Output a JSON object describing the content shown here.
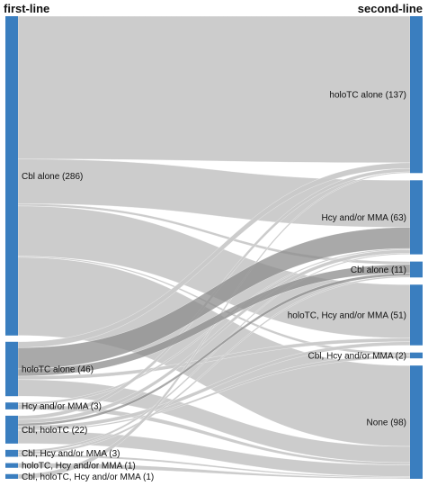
{
  "header": {
    "left_title": "first-line",
    "right_title": "second-line"
  },
  "colors": {
    "node": "#3a7ebf",
    "flow": "#c9c9c9",
    "flow_dark": "#8c8c8c",
    "background": "#ffffff"
  },
  "chart_data": {
    "type": "sankey",
    "sources": [
      {
        "id": "s_cbl",
        "label": "Cbl alone (286)",
        "value": 286
      },
      {
        "id": "s_holo",
        "label": "holoTC alone (46)",
        "value": 46
      },
      {
        "id": "s_hcy",
        "label": "Hcy and/or MMA (3)",
        "value": 3
      },
      {
        "id": "s_cblholo",
        "label": "Cbl, holoTC (22)",
        "value": 22
      },
      {
        "id": "s_cblhcy",
        "label": "Cbl, Hcy and/or MMA (3)",
        "value": 3
      },
      {
        "id": "s_holohcy",
        "label": "holoTC, Hcy and/or MMA (1)",
        "value": 1
      },
      {
        "id": "s_all",
        "label": "Cbl, holoTC, Hcy and/or MMA (1)",
        "value": 1
      }
    ],
    "targets": [
      {
        "id": "t_holo",
        "label": "holoTC alone (137)",
        "value": 137
      },
      {
        "id": "t_hcy",
        "label": "Hcy and/or MMA (63)",
        "value": 63
      },
      {
        "id": "t_cbl",
        "label": "Cbl alone (11)",
        "value": 11
      },
      {
        "id": "t_holohcy",
        "label": "holoTC, Hcy and/or MMA (51)",
        "value": 51
      },
      {
        "id": "t_cblhcy",
        "label": "Cbl, Hcy and/or MMA (2)",
        "value": 2
      },
      {
        "id": "t_none",
        "label": "None (98)",
        "value": 98
      }
    ],
    "links": [
      {
        "source": "s_cbl",
        "target": "t_holo",
        "value": 128
      },
      {
        "source": "s_cbl",
        "target": "t_hcy",
        "value": 40
      },
      {
        "source": "s_cbl",
        "target": "t_cbl",
        "value": 2
      },
      {
        "source": "s_cbl",
        "target": "t_holohcy",
        "value": 45
      },
      {
        "source": "s_cbl",
        "target": "t_cblhcy",
        "value": 1
      },
      {
        "source": "s_cbl",
        "target": "t_none",
        "value": 70
      },
      {
        "source": "s_holo",
        "target": "t_holo",
        "value": 5
      },
      {
        "source": "s_holo",
        "target": "t_hcy",
        "value": 18
      },
      {
        "source": "s_holo",
        "target": "t_cbl",
        "value": 6
      },
      {
        "source": "s_holo",
        "target": "t_holohcy",
        "value": 3
      },
      {
        "source": "s_holo",
        "target": "t_none",
        "value": 14
      },
      {
        "source": "s_hcy",
        "target": "t_hcy",
        "value": 1
      },
      {
        "source": "s_hcy",
        "target": "t_none",
        "value": 2
      },
      {
        "source": "s_cblholo",
        "target": "t_holo",
        "value": 3
      },
      {
        "source": "s_cblholo",
        "target": "t_hcy",
        "value": 3
      },
      {
        "source": "s_cblholo",
        "target": "t_cbl",
        "value": 2
      },
      {
        "source": "s_cblholo",
        "target": "t_holohcy",
        "value": 3
      },
      {
        "source": "s_cblholo",
        "target": "t_cblhcy",
        "value": 1
      },
      {
        "source": "s_cblholo",
        "target": "t_none",
        "value": 10
      },
      {
        "source": "s_cblhcy",
        "target": "t_hcy",
        "value": 1
      },
      {
        "source": "s_cblhcy",
        "target": "t_cbl",
        "value": 1
      },
      {
        "source": "s_cblhcy",
        "target": "t_none",
        "value": 1
      },
      {
        "source": "s_holohcy",
        "target": "t_none",
        "value": 1
      },
      {
        "source": "s_all",
        "target": "t_holo",
        "value": 1
      }
    ],
    "dark_links": [
      {
        "source": "s_holo",
        "target": "t_hcy"
      },
      {
        "source": "s_holo",
        "target": "t_cbl"
      },
      {
        "source": "s_cblholo",
        "target": "t_cbl"
      }
    ]
  }
}
